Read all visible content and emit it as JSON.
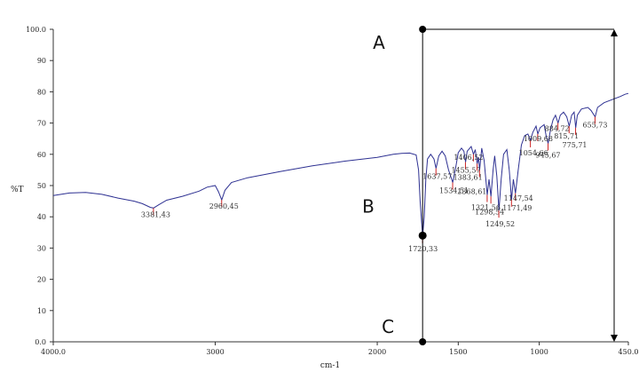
{
  "chart_data": {
    "type": "line",
    "title": "",
    "xlabel": "cm-1",
    "ylabel": "%T",
    "xlim": [
      4000,
      450
    ],
    "ylim": [
      0,
      100
    ],
    "x_reversed": true,
    "x_ticks": [
      4000,
      3000,
      2000,
      1500,
      1000,
      450
    ],
    "x_tick_labels": [
      "4000.0",
      "3000",
      "2000",
      "1500",
      "1000",
      "450.0"
    ],
    "y_ticks": [
      0,
      10,
      20,
      30,
      40,
      50,
      60,
      70,
      80,
      90,
      100
    ],
    "y_tick_labels": [
      "0.0",
      "10",
      "20",
      "30",
      "40",
      "50",
      "60",
      "70",
      "80",
      "90",
      "100.0"
    ],
    "grid": false,
    "series": [
      {
        "color": "#2e3192",
        "points": [
          [
            4000,
            46.8
          ],
          [
            3900,
            47.6
          ],
          [
            3800,
            47.8
          ],
          [
            3700,
            47.2
          ],
          [
            3600,
            46.0
          ],
          [
            3500,
            45.0
          ],
          [
            3450,
            44.2
          ],
          [
            3400,
            43.0
          ],
          [
            3381,
            42.8
          ],
          [
            3350,
            43.8
          ],
          [
            3300,
            45.3
          ],
          [
            3200,
            46.6
          ],
          [
            3100,
            48.2
          ],
          [
            3050,
            49.5
          ],
          [
            3000,
            50.0
          ],
          [
            2980,
            48.0
          ],
          [
            2960,
            45.4
          ],
          [
            2940,
            48.5
          ],
          [
            2900,
            51.0
          ],
          [
            2800,
            52.5
          ],
          [
            2600,
            54.5
          ],
          [
            2400,
            56.3
          ],
          [
            2200,
            57.8
          ],
          [
            2000,
            59.0
          ],
          [
            1900,
            60.0
          ],
          [
            1850,
            60.3
          ],
          [
            1800,
            60.4
          ],
          [
            1760,
            59.8
          ],
          [
            1745,
            55.0
          ],
          [
            1735,
            45.0
          ],
          [
            1720,
            33.8
          ],
          [
            1710,
            40.0
          ],
          [
            1700,
            52.0
          ],
          [
            1690,
            58.5
          ],
          [
            1670,
            60.0
          ],
          [
            1650,
            58.5
          ],
          [
            1637,
            55.5
          ],
          [
            1620,
            59.5
          ],
          [
            1600,
            61.0
          ],
          [
            1580,
            59.5
          ],
          [
            1560,
            55.0
          ],
          [
            1534,
            51.0
          ],
          [
            1515,
            56.0
          ],
          [
            1500,
            60.5
          ],
          [
            1480,
            62.0
          ],
          [
            1465,
            61.0
          ],
          [
            1455,
            57.5
          ],
          [
            1445,
            61.0
          ],
          [
            1420,
            62.5
          ],
          [
            1406,
            60.0
          ],
          [
            1395,
            61.5
          ],
          [
            1383,
            57.0
          ],
          [
            1375,
            59.0
          ],
          [
            1368,
            55.0
          ],
          [
            1355,
            62.0
          ],
          [
            1340,
            58.0
          ],
          [
            1321,
            47.0
          ],
          [
            1310,
            52.0
          ],
          [
            1298,
            46.5
          ],
          [
            1285,
            55.0
          ],
          [
            1275,
            59.5
          ],
          [
            1262,
            53.0
          ],
          [
            1249,
            42.0
          ],
          [
            1235,
            52.0
          ],
          [
            1220,
            60.0
          ],
          [
            1200,
            61.5
          ],
          [
            1185,
            55.0
          ],
          [
            1171,
            45.5
          ],
          [
            1160,
            52.0
          ],
          [
            1147,
            47.5
          ],
          [
            1130,
            55.0
          ],
          [
            1110,
            63.0
          ],
          [
            1090,
            66.0
          ],
          [
            1070,
            66.5
          ],
          [
            1054,
            64.5
          ],
          [
            1040,
            67.0
          ],
          [
            1020,
            69.0
          ],
          [
            1009,
            66.5
          ],
          [
            995,
            68.5
          ],
          [
            970,
            69.5
          ],
          [
            958,
            66.0
          ],
          [
            945,
            63.5
          ],
          [
            930,
            68.0
          ],
          [
            915,
            71.0
          ],
          [
            900,
            72.5
          ],
          [
            884,
            70.0
          ],
          [
            870,
            72.5
          ],
          [
            850,
            73.5
          ],
          [
            830,
            72.0
          ],
          [
            815,
            69.0
          ],
          [
            800,
            72.5
          ],
          [
            785,
            73.5
          ],
          [
            775,
            68.5
          ],
          [
            765,
            72.5
          ],
          [
            740,
            74.5
          ],
          [
            700,
            75.0
          ],
          [
            680,
            74.0
          ],
          [
            655,
            72.0
          ],
          [
            640,
            75.0
          ],
          [
            600,
            76.5
          ],
          [
            550,
            77.5
          ],
          [
            500,
            78.5
          ],
          [
            470,
            79.2
          ],
          [
            450,
            79.5
          ]
        ]
      }
    ],
    "peak_labels": [
      {
        "x": 3381.43,
        "y": 42.8,
        "label": "3381,43"
      },
      {
        "x": 2960.45,
        "y": 45.4,
        "label": "2960,45"
      },
      {
        "x": 1720.33,
        "y": 33.8,
        "label": "1720,33"
      },
      {
        "x": 1637.57,
        "y": 55.5,
        "label": "1637,57"
      },
      {
        "x": 1534.51,
        "y": 51.0,
        "label": "1534,51"
      },
      {
        "x": 1455.57,
        "y": 57.5,
        "label": "1455,57"
      },
      {
        "x": 1406.52,
        "y": 60.0,
        "label": "1406,52"
      },
      {
        "x": 1383.61,
        "y": 57.0,
        "label": "1383,61"
      },
      {
        "x": 1368.61,
        "y": 55.0,
        "label": "1368,61"
      },
      {
        "x": 1321.56,
        "y": 47.0,
        "label": "1321,56"
      },
      {
        "x": 1298.54,
        "y": 46.5,
        "label": "1298,54"
      },
      {
        "x": 1249.52,
        "y": 42.0,
        "label": "1249,52"
      },
      {
        "x": 1171.49,
        "y": 45.5,
        "label": "1171,49"
      },
      {
        "x": 1147.54,
        "y": 47.5,
        "label": "1147,54"
      },
      {
        "x": 1054.66,
        "y": 64.5,
        "label": "1054,66"
      },
      {
        "x": 1009.68,
        "y": 66.5,
        "label": "1009,68"
      },
      {
        "x": 945.67,
        "y": 63.5,
        "label": "945,67"
      },
      {
        "x": 884.72,
        "y": 70.0,
        "label": "884,72"
      },
      {
        "x": 815.71,
        "y": 69.0,
        "label": "815,71"
      },
      {
        "x": 775.71,
        "y": 68.5,
        "label": "775,71"
      },
      {
        "x": 655.73,
        "y": 72.0,
        "label": "655,73"
      }
    ],
    "annotations": [
      {
        "text": "A",
        "x": 1720,
        "y": 100
      },
      {
        "text": "B",
        "x": 1720,
        "y": 34
      },
      {
        "text": "C",
        "x": 1720,
        "y": 0
      }
    ],
    "colors": {
      "line": "#2e3192",
      "peak_marker": "#cc2222",
      "overlay": "#000000"
    }
  }
}
